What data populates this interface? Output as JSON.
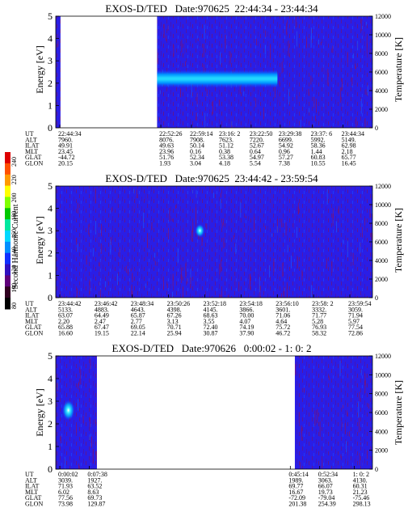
{
  "colorbar": {
    "label": "Second Harmonic Current",
    "ticks": [
      "240",
      "220",
      "200",
      "180",
      "160",
      "140",
      "120",
      "100",
      "80"
    ],
    "colors": [
      "#dd0000",
      "#ff5000",
      "#ff9a00",
      "#ffff00",
      "#80ff00",
      "#00c800",
      "#00e8a0",
      "#00d8ff",
      "#0090ff",
      "#1030ff",
      "#3010c0",
      "#60007a",
      "#300020",
      "#000000"
    ]
  },
  "chart_data": [
    {
      "type": "heatmap",
      "title": "EXOS-D/TED   Date:970625  22:44:34 - 23:44:34",
      "ylabel": "Energy [eV]",
      "ylabel_right": "Temperature [K]",
      "ylim": [
        0,
        5
      ],
      "yticks": [
        "0",
        "1",
        "2",
        "3",
        "4",
        "5"
      ],
      "ylim_right": [
        0,
        12000
      ],
      "yticks_right": [
        "0",
        "2000",
        "4000",
        "6000",
        "8000",
        "10000",
        "12000"
      ],
      "data_segments": [
        [
          0.0,
          0.015
        ],
        [
          0.32,
          1.0
        ]
      ],
      "bright_band": {
        "x_range": [
          0.32,
          0.7
        ],
        "energy": 2.2,
        "width": 0.8
      },
      "table": {
        "labels": [
          "UT",
          "ALT",
          "ILAT",
          "MLT",
          "GLAT",
          "GLON"
        ],
        "columns": [
          [
            "22:44:34",
            "7960.",
            "49.91",
            "23.45",
            "-44.72",
            "20.15"
          ],
          [
            "22:52:26",
            "8076.",
            "49.63",
            "23.96",
            "51.76",
            "1.93"
          ],
          [
            "22:59:14",
            "7908.",
            "50.14",
            "0.16",
            "52.34",
            "3.04"
          ],
          [
            "23:16: 2",
            "7623.",
            "51.12",
            "0.38",
            "53.38",
            "4.18"
          ],
          [
            "23:22:50",
            "7220.",
            "52.67",
            "0.64",
            "54.97",
            "5.54"
          ],
          [
            "23:29:38",
            "6699.",
            "54.92",
            "0.96",
            "57.27",
            "7.38"
          ],
          [
            "23:37: 6",
            "5992.",
            "58.36",
            "1.44",
            "60.83",
            "10.55"
          ],
          [
            "23:44:34",
            "5149.",
            "62.98",
            "2.18",
            "65.77",
            "16.45"
          ]
        ]
      }
    },
    {
      "type": "heatmap",
      "title": "EXOS-D/TED   Date:970625  23:44:42 - 23:59:54",
      "ylabel": "Energy [eV]",
      "ylabel_right": "Temperature [K]",
      "ylim": [
        0,
        5
      ],
      "yticks": [
        "0",
        "1",
        "2",
        "3",
        "4",
        "5"
      ],
      "ylim_right": [
        0,
        12000
      ],
      "yticks_right": [
        "0",
        "2000",
        "4000",
        "6000",
        "8000",
        "10000",
        "12000"
      ],
      "data_segments": [
        [
          0.0,
          1.0
        ]
      ],
      "bright_band": {
        "x_range": [
          0.44,
          0.47
        ],
        "energy": 3.0,
        "width": 0.6
      },
      "table": {
        "labels": [
          "UT",
          "ALT",
          "ILAT",
          "MLT",
          "GLAT",
          "GLON"
        ],
        "columns": [
          [
            "23:44:42",
            "5133.",
            "63.07",
            "2.20",
            "65.88",
            "16.60"
          ],
          [
            "23:46:42",
            "4883.",
            "64.49",
            "2.47",
            "67.47",
            "19.15"
          ],
          [
            "23:48:34",
            "4643.",
            "65.87",
            "2.77",
            "69.05",
            "22.14"
          ],
          [
            "23:50:26",
            "4398.",
            "67.26",
            "3.13",
            "70.71",
            "25.94"
          ],
          [
            "23:52:18",
            "4145.",
            "68.63",
            "3.55",
            "72.40",
            "30.87"
          ],
          [
            "23:54:18",
            "3866.",
            "70.00",
            "4.07",
            "74.19",
            "37.90"
          ],
          [
            "23:56:10",
            "3601.",
            "71.06",
            "4.64",
            "75.72",
            "46.72"
          ],
          [
            "23:58: 2",
            "3332.",
            "71.77",
            "5.28",
            "76.93",
            "58.32"
          ],
          [
            "23:59:54",
            "3059.",
            "71.94",
            "5.97",
            "77.54",
            "72.86"
          ]
        ]
      }
    },
    {
      "type": "heatmap",
      "title": "EXOS-D/TED   Date:970626   0:00:02 - 1: 0: 2",
      "ylabel": "Energy [eV]",
      "ylabel_right": "Temperature [K]",
      "ylim": [
        0,
        5
      ],
      "yticks": [
        "0",
        "1",
        "2",
        "3",
        "4",
        "5"
      ],
      "ylim_right": [
        0,
        12000
      ],
      "yticks_right": [
        "0",
        "2000",
        "4000",
        "6000",
        "8000",
        "10000",
        "12000"
      ],
      "data_segments": [
        [
          0.0,
          0.13
        ],
        [
          0.755,
          1.0
        ]
      ],
      "bright_band": {
        "x_range": [
          0.02,
          0.06
        ],
        "energy": 2.6,
        "width": 0.9
      },
      "table": {
        "labels": [
          "UT",
          "ALT",
          "ILAT",
          "MLT",
          "GLAT",
          "GLON"
        ],
        "columns": [
          [
            "0:00:02",
            "3039.",
            "71.93",
            "6.02",
            "77.56",
            "73.98"
          ],
          [
            "0:07:38",
            "1927.",
            "63.52",
            "8.63",
            "69.73",
            "129.87"
          ],
          [
            "0:45:14",
            "1989.",
            "69.77",
            "16.67",
            "-72.09",
            "201.38"
          ],
          [
            "0:52:34",
            "3063.",
            "66.07",
            "19.73",
            "-79.04",
            "254.39"
          ],
          [
            "1: 0: 2",
            "4130.",
            "60.31",
            "21.23",
            "-75.46",
            "298.13"
          ]
        ]
      }
    }
  ]
}
